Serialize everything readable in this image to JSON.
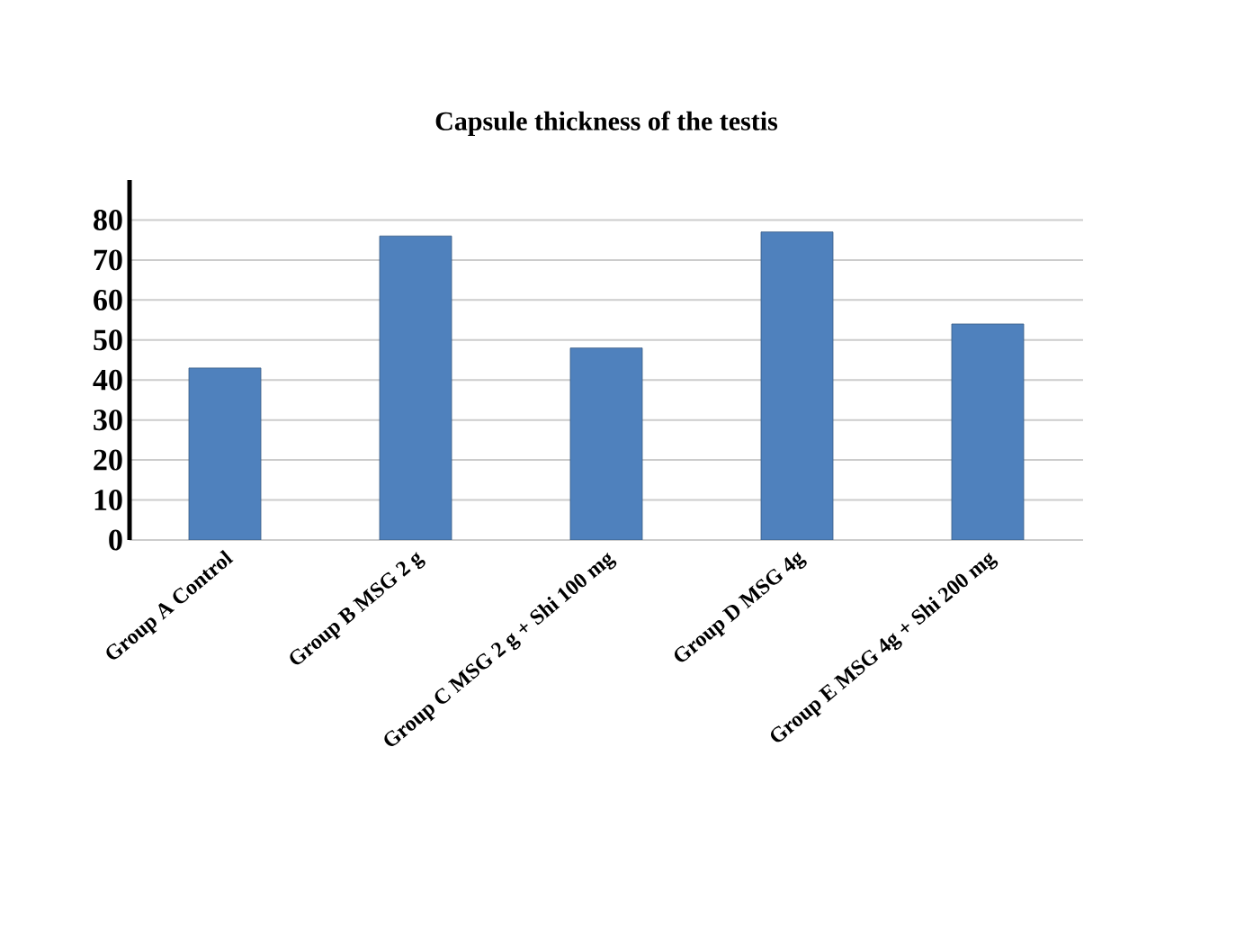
{
  "chart_data": {
    "type": "bar",
    "title": "Capsule thickness of the testis",
    "categories": [
      "Group A Control",
      "Group B MSG 2 g",
      "Group C MSG 2 g + Shi 100 mg",
      "Group D MSG 4g",
      "Group E MSG 4g + Shi 200 mg"
    ],
    "values": [
      43,
      76,
      48,
      77,
      54
    ],
    "color": "#4f81bd",
    "ylim": [
      0,
      90
    ],
    "yticks": [
      0,
      10,
      20,
      30,
      40,
      50,
      60,
      70,
      80
    ],
    "grid": "y"
  }
}
